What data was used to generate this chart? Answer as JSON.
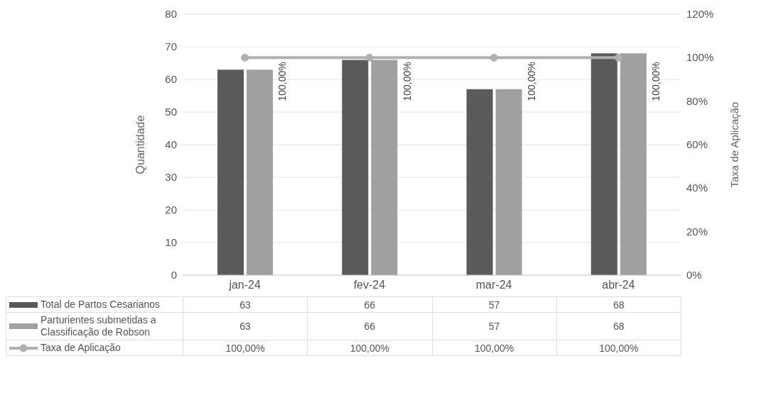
{
  "chart_data": {
    "type": "bar",
    "ylabel": "Quantidade",
    "y2label": "Taxa de Aplicação",
    "categories": [
      "jan-24",
      "fev-24",
      "mar-24",
      "abr-24"
    ],
    "series": [
      {
        "name": "Total de Partos Cesarianos",
        "color": "#5a5a5a",
        "values": [
          63,
          66,
          57,
          68
        ]
      },
      {
        "name": "Parturientes submetidas a Classificação de Robson",
        "color": "#a0a0a0",
        "values": [
          63,
          66,
          57,
          68
        ]
      },
      {
        "name": "Taxa de Aplicação",
        "type": "line",
        "axis": "y2",
        "color": "#b0b0b0",
        "values": [
          100,
          100,
          100,
          100
        ],
        "value_labels": [
          "100,00%",
          "100,00%",
          "100,00%",
          "100,00%"
        ]
      }
    ],
    "ylim": [
      0,
      80
    ],
    "yticks": [
      0,
      10,
      20,
      30,
      40,
      50,
      60,
      70,
      80
    ],
    "y2lim": [
      0,
      120
    ],
    "y2ticks": [
      {
        "value": 0,
        "label": "0%"
      },
      {
        "value": 20,
        "label": "20%"
      },
      {
        "value": 40,
        "label": "40%"
      },
      {
        "value": 60,
        "label": "60%"
      },
      {
        "value": 80,
        "label": "80%"
      },
      {
        "value": 100,
        "label": "100%"
      },
      {
        "value": 120,
        "label": "120%"
      }
    ],
    "grid": "y",
    "legend": "bottom",
    "data_labels": true,
    "marker": "circle"
  }
}
